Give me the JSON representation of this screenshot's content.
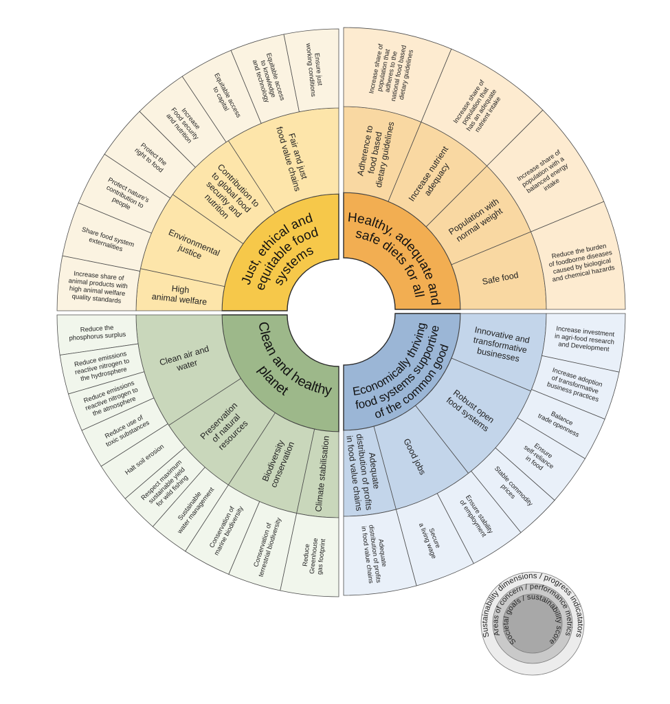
{
  "quadrants": [
    {
      "id": "just-ethical",
      "colors": {
        "inner": "#f6c84a",
        "middle": "#fde5aa",
        "outer": "#fbf3e1"
      },
      "inner": {
        "lines": [
          "Just, ethical and",
          "equitable food",
          "systems"
        ]
      },
      "middle": [
        {
          "lines": [
            "High",
            "animal welfare"
          ]
        },
        {
          "lines": [
            "Environmental",
            "justice"
          ]
        },
        {
          "lines": [
            "Contribution to",
            "to global food",
            "security and",
            "nutrition"
          ]
        },
        {
          "lines": [
            "Fair and just",
            "food value chains"
          ]
        }
      ],
      "outer": [
        {
          "lines": [
            "Increase share of",
            "animal products with",
            "high animal welfare",
            "quality standards"
          ]
        },
        {
          "lines": [
            "Share food system",
            "externalities"
          ]
        },
        {
          "lines": [
            "Protect nature's",
            "contribution to",
            "people"
          ]
        },
        {
          "lines": [
            "Protect the",
            "right to food"
          ]
        },
        {
          "lines": [
            "Increase",
            "Food security",
            "and nutrition"
          ]
        },
        {
          "lines": [
            "Equitable access",
            "to capital"
          ]
        },
        {
          "lines": [
            "Equitable access",
            "to knowledge",
            "and technology"
          ]
        },
        {
          "lines": [
            "Ensure just",
            "working conditions"
          ]
        }
      ]
    },
    {
      "id": "healthy-diets",
      "colors": {
        "inner": "#f2ae52",
        "middle": "#f9d8a2",
        "outer": "#fdebd0"
      },
      "inner": {
        "lines": [
          "Healthy, adequate and",
          "safe diets for all"
        ]
      },
      "middle": [
        {
          "lines": [
            "Adherence to",
            "food based",
            "dietary guidelines"
          ]
        },
        {
          "lines": [
            "Increase nutrient",
            "adequacy"
          ]
        },
        {
          "lines": [
            "Population with",
            "normal weight"
          ]
        },
        {
          "lines": [
            "Safe food"
          ]
        }
      ],
      "outer": [
        {
          "lines": [
            "Increase share of",
            "population that",
            "adheres to the",
            "national food based",
            "dietary guidelines"
          ]
        },
        {
          "lines": [
            "Increase share of",
            "population that",
            "has an adequate",
            "nutrient intake"
          ]
        },
        {
          "lines": [
            "Increase share of",
            "population with a",
            "balanced energy",
            "intake"
          ]
        },
        {
          "lines": [
            "Reduce the burden",
            "of foodborne diseases",
            "caused by biological",
            "and chemical hazards"
          ]
        }
      ]
    },
    {
      "id": "economically-thriving",
      "colors": {
        "inner": "#9bb6d6",
        "middle": "#c3d5ea",
        "outer": "#e9f0f9"
      },
      "inner": {
        "lines": [
          "Economically thriving",
          "food systems supportive",
          "of the common good"
        ]
      },
      "middle": [
        {
          "lines": [
            "Innovative and",
            "transformative",
            "businesses"
          ]
        },
        {
          "lines": [
            "Robust open",
            "food systems"
          ]
        },
        {
          "lines": [
            "Good jobs"
          ]
        },
        {
          "lines": [
            "Adequate",
            "distribution of profits",
            "in food value chains"
          ]
        }
      ],
      "outer": [
        {
          "lines": [
            "Increase investment",
            "in agri-food research",
            "and Development"
          ]
        },
        {
          "lines": [
            "Increase adoption",
            "of transformative",
            "business practices"
          ]
        },
        {
          "lines": [
            "Balance",
            "trade openness"
          ]
        },
        {
          "lines": [
            "Ensure",
            "self-reliance",
            "in food"
          ]
        },
        {
          "lines": [
            "Stable commodity",
            "prices"
          ]
        },
        {
          "lines": [
            "Ensure stability",
            "of employment"
          ]
        },
        {
          "lines": [
            "Secure",
            "a living wage"
          ]
        },
        {
          "lines": [
            "Adequate",
            "distribution of profits",
            "in food value chains"
          ]
        }
      ]
    },
    {
      "id": "clean-planet",
      "colors": {
        "inner": "#9db88a",
        "middle": "#c9d7bb",
        "outer": "#f1f6ec"
      },
      "inner": {
        "lines": [
          "Clean and healthy",
          "planet"
        ]
      },
      "middle": [
        {
          "lines": [
            "Clean air and",
            "water"
          ]
        },
        {
          "lines": [
            "Preservation",
            "of natural",
            "resources"
          ]
        },
        {
          "lines": [
            "Biodiversity",
            "conservation"
          ]
        },
        {
          "lines": [
            "Climate stabilisation"
          ]
        }
      ],
      "outer": [
        {
          "lines": [
            "Reduce the",
            "phosphorus surplus"
          ]
        },
        {
          "lines": [
            "Reduce emissions",
            "reactive nitrogen to",
            "the hydrosphere"
          ]
        },
        {
          "lines": [
            "Reduce emissions",
            "reactive nitrogen to",
            "the atmosphere"
          ]
        },
        {
          "lines": [
            "Reduce use of",
            "toxic substances"
          ]
        },
        {
          "lines": [
            "Halt soil erosion"
          ]
        },
        {
          "lines": [
            "Respect maximum",
            "sustainable yield",
            "for wild fishing"
          ]
        },
        {
          "lines": [
            "Sustainable",
            "water management"
          ]
        },
        {
          "lines": [
            "Conservation of",
            "marine biodiversity"
          ]
        },
        {
          "lines": [
            "Conservation of",
            "terrestrial biodiversity"
          ]
        },
        {
          "lines": [
            "Reduce",
            "Greenhouse",
            "gas footprint"
          ]
        }
      ]
    }
  ],
  "legend": {
    "outer": "Sustainability dimensions / progress indicatators",
    "middle": "Areas of concern / performance metrics",
    "inner": "Societal goals / sustainability score",
    "colors": {
      "outer": "#ececec",
      "middle": "#c9c9c9",
      "inner": "#a8a8a8"
    }
  }
}
